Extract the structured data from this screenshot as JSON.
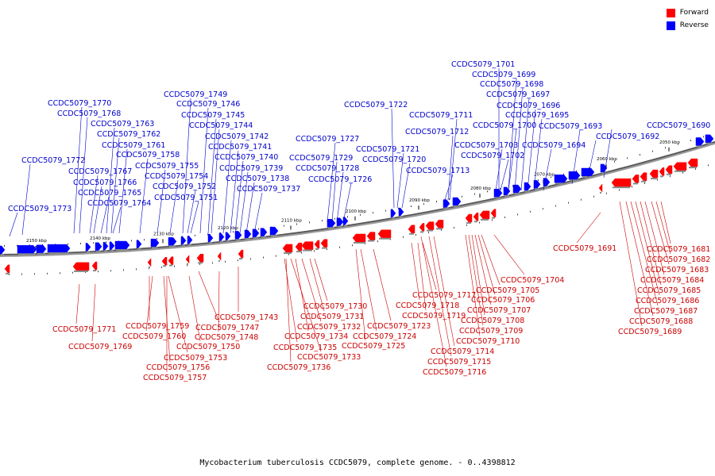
{
  "legend": {
    "forward_label": "Forward",
    "reverse_label": "Reverse",
    "forward_color": "#ff0000",
    "reverse_color": "#0000ff"
  },
  "caption": "Mycobacterium tuberculosis CCDC5079, complete genome. - 0..4398812",
  "ticks": [
    "2150 kbp",
    "2140 kbp",
    "2130 kbp",
    "2120 kbp",
    "2110 kbp",
    "2100 kbp",
    "2090 kbp",
    "2080 kbp",
    "2070 kbp",
    "2060 kbp",
    "2050 kbp"
  ],
  "reverse_genes": [
    "CCDC5079_1773",
    "CCDC5079_1772",
    "CCDC5079_1770",
    "CCDC5079_1768",
    "CCDC5079_1767",
    "CCDC5079_1766",
    "CCDC5079_1765",
    "CCDC5079_1764",
    "CCDC5079_1763",
    "CCDC5079_1762",
    "CCDC5079_1761",
    "CCDC5079_1758",
    "CCDC5079_1755",
    "CCDC5079_1754",
    "CCDC5079_1752",
    "CCDC5079_1751",
    "CCDC5079_1749",
    "CCDC5079_1746",
    "CCDC5079_1745",
    "CCDC5079_1744",
    "CCDC5079_1742",
    "CCDC5079_1741",
    "CCDC5079_1740",
    "CCDC5079_1739",
    "CCDC5079_1738",
    "CCDC5079_1737",
    "CCDC5079_1727",
    "CCDC5079_1729",
    "CCDC5079_1728",
    "CCDC5079_1726",
    "CCDC5079_1722",
    "CCDC5079_1721",
    "CCDC5079_1720",
    "CCDC5079_1713",
    "CCDC5079_1712",
    "CCDC5079_1711",
    "CCDC5079_1703",
    "CCDC5079_1702",
    "CCDC5079_1701",
    "CCDC5079_1699",
    "CCDC5079_1698",
    "CCDC5079_1697",
    "CCDC5079_1696",
    "CCDC5079_1695",
    "CCDC5079_1700",
    "CCDC5079_1694",
    "CCDC5079_1693",
    "CCDC5079_1692",
    "CCDC5079_1690"
  ],
  "forward_genes": [
    "CCDC5079_1771",
    "CCDC5079_1769",
    "CCDC5079_1759",
    "CCDC5079_1760",
    "CCDC5079_1756",
    "CCDC5079_1757",
    "CCDC5079_1753",
    "CCDC5079_1750",
    "CCDC5079_1747",
    "CCDC5079_1748",
    "CCDC5079_1743",
    "CCDC5079_1730",
    "CCDC5079_1731",
    "CCDC5079_1732",
    "CCDC5079_1734",
    "CCDC5079_1735",
    "CCDC5079_1733",
    "CCDC5079_1736",
    "CCDC5079_1723",
    "CCDC5079_1724",
    "CCDC5079_1725",
    "CCDC5079_1717",
    "CCDC5079_1718",
    "CCDC5079_1719",
    "CCDC5079_1714",
    "CCDC5079_1715",
    "CCDC5079_1716",
    "CCDC5079_1704",
    "CCDC5079_1705",
    "CCDC5079_1706",
    "CCDC5079_1707",
    "CCDC5079_1708",
    "CCDC5079_1709",
    "CCDC5079_1710",
    "CCDC5079_1691",
    "CCDC5079_1681",
    "CCDC5079_1682",
    "CCDC5079_1683",
    "CCDC5079_1684",
    "CCDC5079_1685",
    "CCDC5079_1686",
    "CCDC5079_1687",
    "CCDC5079_1688",
    "CCDC5079_1689"
  ]
}
